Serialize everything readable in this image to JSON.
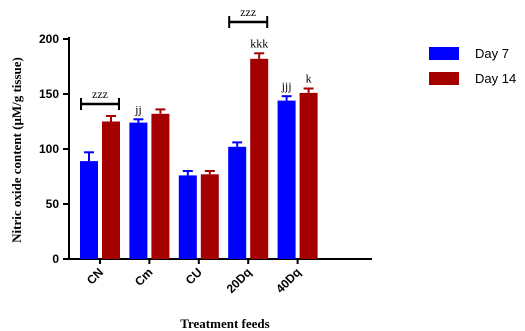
{
  "chart_data": {
    "type": "bar",
    "categories": [
      "CN",
      "Cm",
      "CU",
      "20Dq",
      "40Dq"
    ],
    "series": [
      {
        "name": "Day 7",
        "color": "#0000ff",
        "values": [
          89,
          124,
          76,
          102,
          144
        ],
        "errors": [
          8,
          3,
          4,
          4,
          4
        ]
      },
      {
        "name": "Day 14",
        "color": "#a50000",
        "values": [
          125,
          132,
          77,
          182,
          151
        ],
        "errors": [
          5,
          4,
          3,
          5,
          4
        ]
      }
    ],
    "xlabel": "Treatment feeds",
    "ylabel": "Nitric oxide content (μM/g tissue)",
    "ylim": [
      0,
      200
    ],
    "yticks": [
      0,
      50,
      100,
      150,
      200
    ],
    "legend_position": "top-right",
    "annotations": [
      {
        "text": "zzz",
        "category": "CN",
        "bracket": true
      },
      {
        "text": "jj",
        "category": "Cm",
        "series": "Day 7"
      },
      {
        "text": "zzz",
        "category": "20Dq",
        "bracket": true
      },
      {
        "text": "kkk",
        "category": "20Dq",
        "series": "Day 14"
      },
      {
        "text": "jjj",
        "category": "40Dq",
        "series": "Day 7"
      },
      {
        "text": "k",
        "category": "40Dq",
        "series": "Day 14"
      }
    ]
  }
}
